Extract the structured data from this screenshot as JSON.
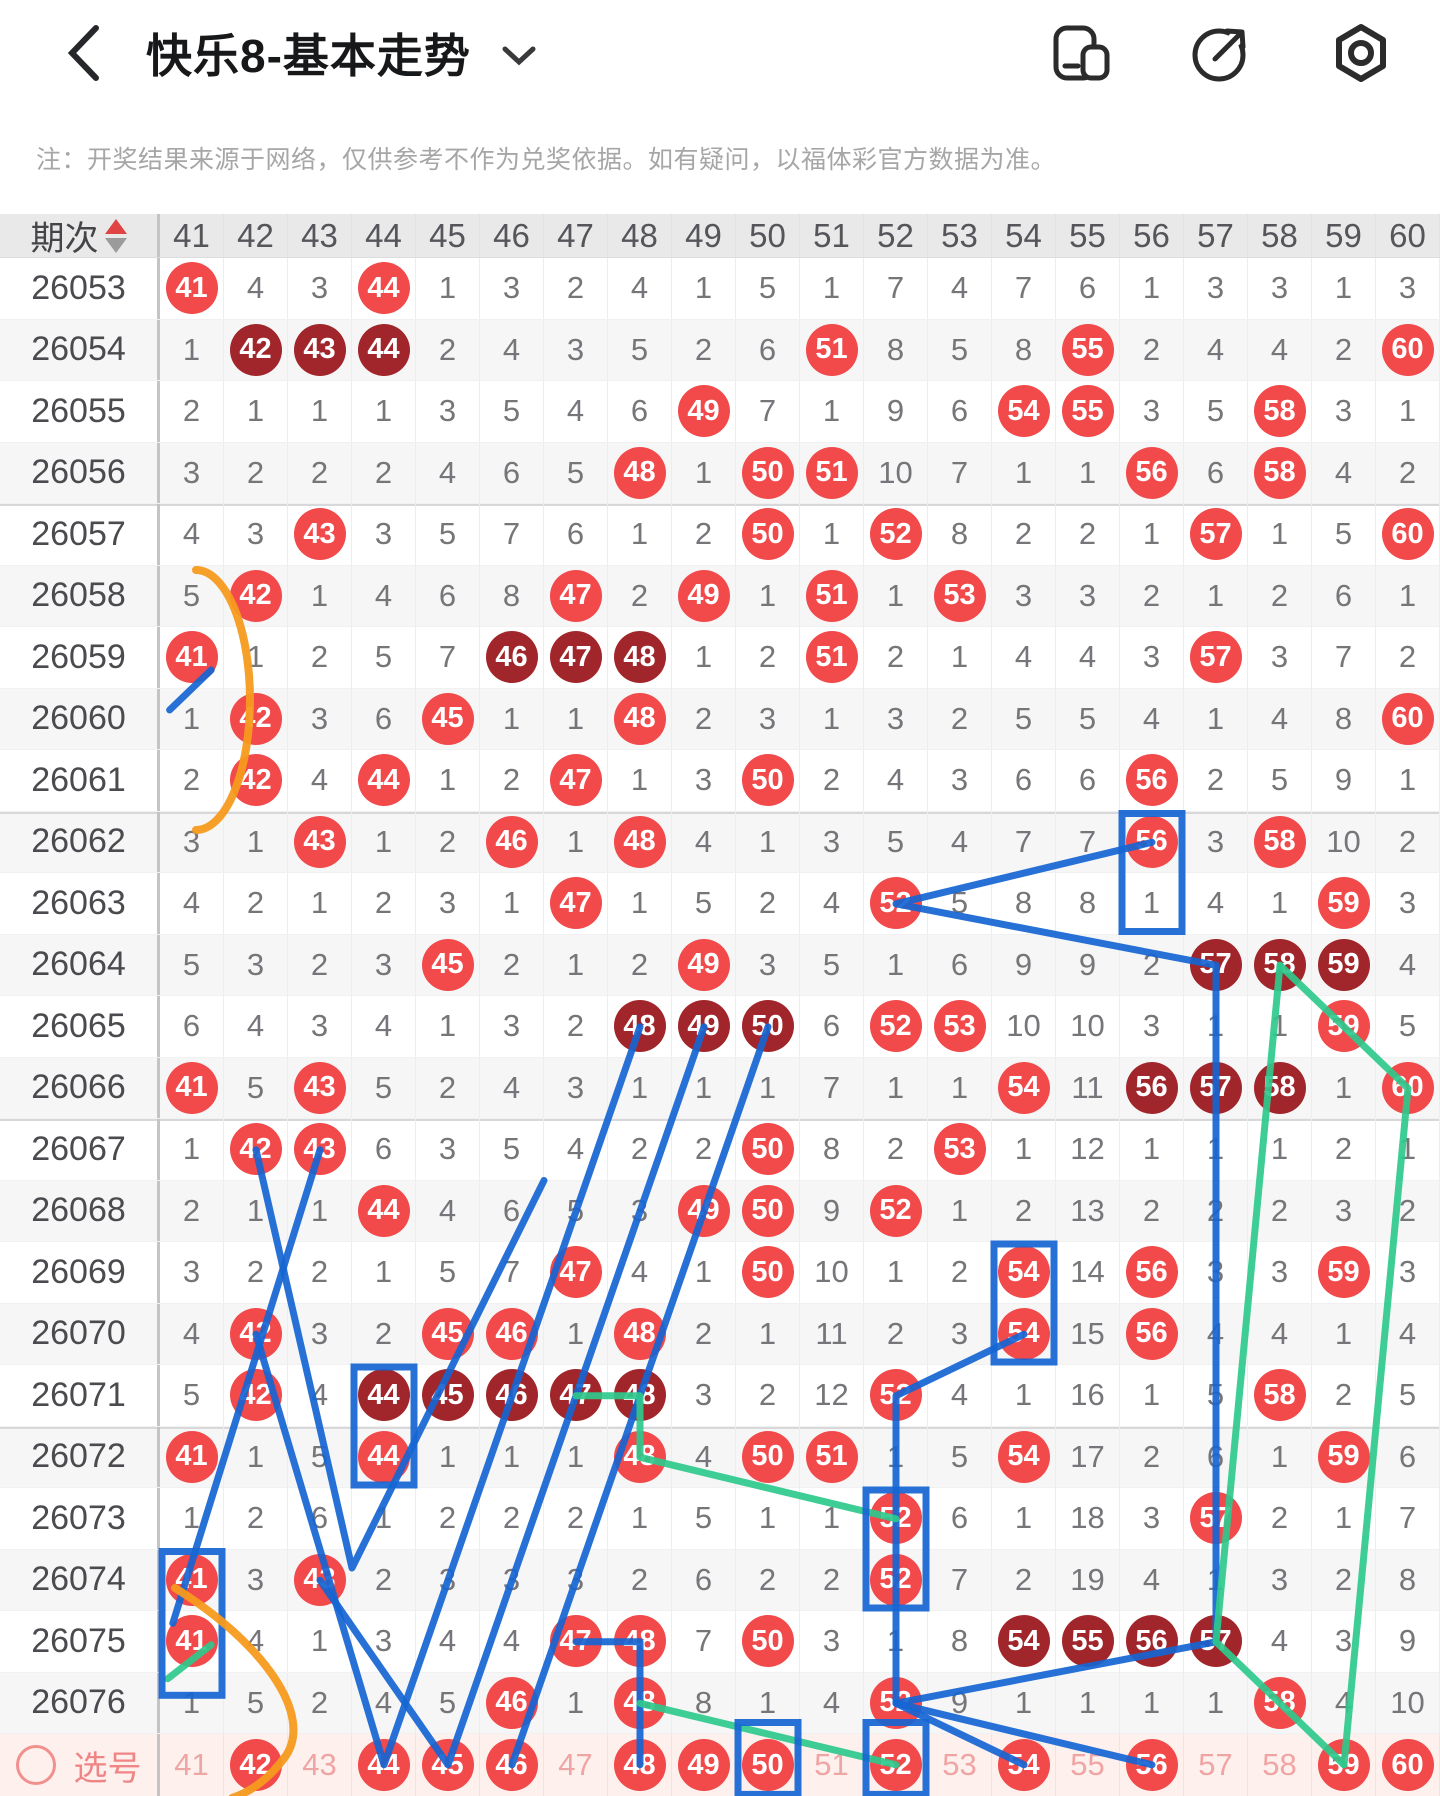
{
  "header": {
    "back_icon": "chevron-left",
    "title": "快乐8-基本走势",
    "dropdown_icon": "chevron-down",
    "action_icons": [
      "floating-window",
      "share",
      "settings-nut"
    ]
  },
  "notice": "注：开奖结果来源于网络，仅供参考不作为兑奖依据。如有疑问，以福体彩官方数据为准。",
  "table": {
    "period_header": "期次",
    "columns": [
      "41",
      "42",
      "43",
      "44",
      "45",
      "46",
      "47",
      "48",
      "49",
      "50",
      "51",
      "52",
      "53",
      "54",
      "55",
      "56",
      "57",
      "58",
      "59",
      "60"
    ],
    "legend": {
      "B": "drawn-number red ball",
      "H": "dark ball (3+ consecutive run)",
      "plain": "miss count"
    },
    "rows": [
      {
        "p": "26053",
        "c": [
          "B41",
          "4",
          "3",
          "B44",
          "1",
          "3",
          "2",
          "4",
          "1",
          "5",
          "1",
          "7",
          "4",
          "7",
          "6",
          "1",
          "3",
          "3",
          "1",
          "3"
        ]
      },
      {
        "p": "26054",
        "c": [
          "1",
          "H42",
          "H43",
          "H44",
          "2",
          "4",
          "3",
          "5",
          "2",
          "6",
          "B51",
          "8",
          "5",
          "8",
          "B55",
          "2",
          "4",
          "4",
          "2",
          "B60"
        ]
      },
      {
        "p": "26055",
        "c": [
          "2",
          "1",
          "1",
          "1",
          "3",
          "5",
          "4",
          "6",
          "B49",
          "7",
          "1",
          "9",
          "6",
          "B54",
          "B55",
          "3",
          "5",
          "B58",
          "3",
          "1"
        ]
      },
      {
        "p": "26056",
        "c": [
          "3",
          "2",
          "2",
          "2",
          "4",
          "6",
          "5",
          "B48",
          "1",
          "B50",
          "B51",
          "10",
          "7",
          "1",
          "1",
          "B56",
          "6",
          "B58",
          "4",
          "2"
        ]
      },
      {
        "p": "26057",
        "c": [
          "4",
          "3",
          "B43",
          "3",
          "5",
          "7",
          "6",
          "1",
          "2",
          "B50",
          "1",
          "B52",
          "8",
          "2",
          "2",
          "1",
          "B57",
          "1",
          "5",
          "B60"
        ]
      },
      {
        "p": "26058",
        "c": [
          "5",
          "B42",
          "1",
          "4",
          "6",
          "8",
          "B47",
          "2",
          "B49",
          "1",
          "B51",
          "1",
          "B53",
          "3",
          "3",
          "2",
          "1",
          "2",
          "6",
          "1"
        ]
      },
      {
        "p": "26059",
        "c": [
          "B41",
          "1",
          "2",
          "5",
          "7",
          "H46",
          "H47",
          "H48",
          "1",
          "2",
          "B51",
          "2",
          "1",
          "4",
          "4",
          "3",
          "B57",
          "3",
          "7",
          "2"
        ]
      },
      {
        "p": "26060",
        "c": [
          "1",
          "B42",
          "3",
          "6",
          "B45",
          "1",
          "1",
          "B48",
          "2",
          "3",
          "1",
          "3",
          "2",
          "5",
          "5",
          "4",
          "1",
          "4",
          "8",
          "B60"
        ]
      },
      {
        "p": "26061",
        "c": [
          "2",
          "B42",
          "4",
          "B44",
          "1",
          "2",
          "B47",
          "1",
          "3",
          "B50",
          "2",
          "4",
          "3",
          "6",
          "6",
          "B56",
          "2",
          "5",
          "9",
          "1"
        ]
      },
      {
        "p": "26062",
        "c": [
          "3",
          "1",
          "B43",
          "1",
          "2",
          "B46",
          "1",
          "B48",
          "4",
          "1",
          "3",
          "5",
          "4",
          "7",
          "7",
          "B56",
          "3",
          "B58",
          "10",
          "2"
        ]
      },
      {
        "p": "26063",
        "c": [
          "4",
          "2",
          "1",
          "2",
          "3",
          "1",
          "B47",
          "1",
          "5",
          "2",
          "4",
          "B52",
          "5",
          "8",
          "8",
          "1",
          "4",
          "1",
          "B59",
          "3"
        ]
      },
      {
        "p": "26064",
        "c": [
          "5",
          "3",
          "2",
          "3",
          "B45",
          "2",
          "1",
          "2",
          "B49",
          "3",
          "5",
          "1",
          "6",
          "9",
          "9",
          "2",
          "H57",
          "H58",
          "H59",
          "4"
        ]
      },
      {
        "p": "26065",
        "c": [
          "6",
          "4",
          "3",
          "4",
          "1",
          "3",
          "2",
          "H48",
          "H49",
          "H50",
          "6",
          "B52",
          "B53",
          "10",
          "10",
          "3",
          "1",
          "1",
          "B59",
          "5"
        ]
      },
      {
        "p": "26066",
        "c": [
          "B41",
          "5",
          "B43",
          "5",
          "2",
          "4",
          "3",
          "1",
          "1",
          "1",
          "7",
          "1",
          "1",
          "B54",
          "11",
          "H56",
          "H57",
          "H58",
          "1",
          "B60"
        ]
      },
      {
        "p": "26067",
        "c": [
          "1",
          "B42",
          "B43",
          "6",
          "3",
          "5",
          "4",
          "2",
          "2",
          "B50",
          "8",
          "2",
          "B53",
          "1",
          "12",
          "1",
          "1",
          "1",
          "2",
          "1"
        ]
      },
      {
        "p": "26068",
        "c": [
          "2",
          "1",
          "1",
          "B44",
          "4",
          "6",
          "5",
          "3",
          "B49",
          "B50",
          "9",
          "B52",
          "1",
          "2",
          "13",
          "2",
          "2",
          "2",
          "3",
          "2"
        ]
      },
      {
        "p": "26069",
        "c": [
          "3",
          "2",
          "2",
          "1",
          "5",
          "7",
          "B47",
          "4",
          "1",
          "B50",
          "10",
          "1",
          "2",
          "B54",
          "14",
          "B56",
          "3",
          "3",
          "B59",
          "3"
        ]
      },
      {
        "p": "26070",
        "c": [
          "4",
          "B42",
          "3",
          "2",
          "B45",
          "B46",
          "1",
          "B48",
          "2",
          "1",
          "11",
          "2",
          "3",
          "B54",
          "15",
          "B56",
          "4",
          "4",
          "1",
          "4"
        ]
      },
      {
        "p": "26071",
        "c": [
          "5",
          "B42",
          "4",
          "H44",
          "H45",
          "H46",
          "H47",
          "H48",
          "3",
          "2",
          "12",
          "B52",
          "4",
          "1",
          "16",
          "1",
          "5",
          "B58",
          "2",
          "5"
        ]
      },
      {
        "p": "26072",
        "c": [
          "B41",
          "1",
          "5",
          "B44",
          "1",
          "1",
          "1",
          "B48",
          "4",
          "B50",
          "B51",
          "1",
          "5",
          "B54",
          "17",
          "2",
          "6",
          "1",
          "B59",
          "6"
        ]
      },
      {
        "p": "26073",
        "c": [
          "1",
          "2",
          "6",
          "1",
          "2",
          "2",
          "2",
          "1",
          "5",
          "1",
          "1",
          "B52",
          "6",
          "1",
          "18",
          "3",
          "B57",
          "2",
          "1",
          "7"
        ]
      },
      {
        "p": "26074",
        "c": [
          "B41",
          "3",
          "B43",
          "2",
          "3",
          "3",
          "3",
          "2",
          "6",
          "2",
          "2",
          "B52",
          "7",
          "2",
          "19",
          "4",
          "1",
          "3",
          "2",
          "8"
        ]
      },
      {
        "p": "26075",
        "c": [
          "B41",
          "4",
          "1",
          "3",
          "4",
          "4",
          "B47",
          "B48",
          "7",
          "B50",
          "3",
          "1",
          "8",
          "H54",
          "H55",
          "H56",
          "H57",
          "4",
          "3",
          "9"
        ]
      },
      {
        "p": "26076",
        "c": [
          "1",
          "5",
          "2",
          "4",
          "5",
          "B46",
          "1",
          "B48",
          "8",
          "1",
          "4",
          "B52",
          "9",
          "1",
          "1",
          "1",
          "1",
          "B58",
          "4",
          "10"
        ]
      }
    ],
    "group_separator_periods": [
      "26057",
      "26062",
      "26067",
      "26072"
    ],
    "pick_row": {
      "label": "选号",
      "c": [
        "41",
        "B42",
        "43",
        "B44",
        "B45",
        "B46",
        "47",
        "B48",
        "B49",
        "B50",
        "51",
        "B52",
        "53",
        "B54",
        "55",
        "B56",
        "57",
        "58",
        "B59",
        "B60"
      ]
    }
  },
  "colors": {
    "ball": "#f2494b",
    "ball_hot": "#a1262b",
    "pick_plain": "#f0a5a5",
    "pick_bg": "#fdf0ed",
    "annotation_blue": "#1565d2",
    "annotation_green": "#2ec98c",
    "annotation_orange": "#f59a1e",
    "header_bg": "#e9e9ea",
    "stripe": "#f6f6f7",
    "miss_text": "#76767a",
    "sort_up": "#e04343",
    "sort_down": "#9b9b9b"
  },
  "annotations": {
    "blue_lines": [
      [
        [
          56,
          9
        ],
        [
          52,
          10
        ],
        [
          57,
          11
        ],
        [
          57,
          22
        ],
        [
          52,
          23
        ],
        [
          54,
          24
        ]
      ],
      [
        [
          52,
          23
        ],
        [
          56,
          24
        ]
      ],
      [
        [
          54,
          17
        ],
        [
          52,
          18
        ],
        [
          52,
          23
        ]
      ],
      [
        [
          47,
          22
        ],
        [
          48,
          22
        ],
        [
          48,
          24
        ]
      ],
      [
        [
          48,
          12
        ],
        [
          44,
          24
        ],
        [
          42,
          17
        ]
      ],
      [
        [
          49,
          12
        ],
        [
          45,
          24
        ],
        [
          43,
          21
        ]
      ],
      [
        [
          50,
          12
        ],
        [
          46,
          24
        ]
      ],
      [
        [
          42,
          14
        ],
        [
          43.5,
          20.8
        ],
        [
          46.5,
          14.5
        ]
      ],
      [
        [
          43,
          14
        ],
        [
          40.7,
          21.7
        ]
      ],
      [
        [
          41.3,
          6.2
        ],
        [
          40.65,
          6.85
        ]
      ]
    ],
    "green_lines": [
      [
        [
          58,
          11
        ],
        [
          57,
          22
        ],
        [
          59,
          24
        ]
      ],
      [
        [
          58,
          11
        ],
        [
          60,
          13
        ],
        [
          59,
          24
        ]
      ],
      [
        [
          47,
          18
        ],
        [
          48,
          18
        ],
        [
          48,
          19
        ],
        [
          52,
          20
        ]
      ],
      [
        [
          48,
          23
        ],
        [
          52,
          24
        ]
      ],
      [
        [
          40.62,
          22.6
        ],
        [
          41.3,
          22.05
        ]
      ]
    ],
    "rects": [
      {
        "col": 56,
        "row": 9,
        "span": 2
      },
      {
        "col": 54,
        "row": 16,
        "span": 2
      },
      {
        "col": 44,
        "row": 18,
        "span": 2
      },
      {
        "col": 52,
        "row": 20,
        "span": 2
      },
      {
        "col": 41,
        "row": 21,
        "span": 2.42
      },
      {
        "col": 52,
        "row": 23.78,
        "span": 1.25
      },
      {
        "col": 50,
        "row": 23.78,
        "span": 1.25
      }
    ],
    "orange_paths": [
      "M 196 570 A 54 130 0 0 1 196 830",
      "M 175 1588 C 262 1642 315 1715 285 1757 C 268 1780 250 1792 232 1798"
    ]
  }
}
